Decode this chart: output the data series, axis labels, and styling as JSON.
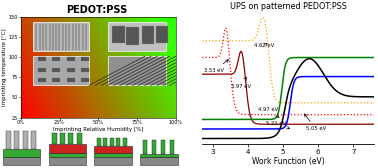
{
  "title_left": "PEDOT:PSS",
  "title_right": "UPS on patterned PEDOT:PSS",
  "xlabel_left": "Imprinting Relative Humidity [%]",
  "ylabel_left": "Imprinting temperature [°C]",
  "xlabel_right": "Work Function (eV)",
  "xticks_left": [
    "0%",
    "25%",
    "50%",
    "75%",
    "100%"
  ],
  "yticks_left": [
    "25",
    "50",
    "75",
    "100",
    "125",
    "150"
  ],
  "schematic_colors": {
    "gray": "#888888",
    "light_gray": "#b0b0b0",
    "green": "#33aa33",
    "red": "#cc2222",
    "dark_gray": "#666666"
  }
}
